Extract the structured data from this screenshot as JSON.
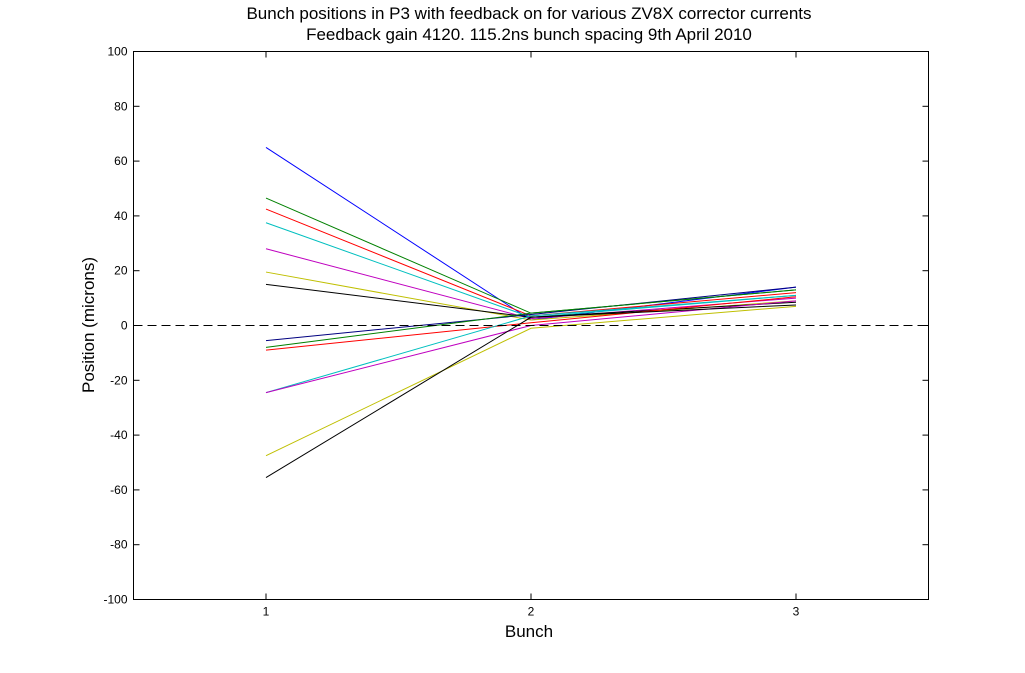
{
  "chart_data": {
    "type": "line",
    "title": "Bunch positions in P3 with feedback on for various ZV8X corrector currents",
    "subtitle": "Feedback gain 4120. 115.2ns bunch spacing 9th April 2010",
    "xlabel": "Bunch",
    "ylabel": "Position (microns)",
    "xlim": [
      0.5,
      3.5
    ],
    "ylim": [
      -100,
      100
    ],
    "xticks": [
      1,
      2,
      3
    ],
    "yticks": [
      -100,
      -80,
      -60,
      -40,
      -20,
      0,
      20,
      40,
      60,
      80,
      100
    ],
    "x": [
      1,
      2,
      3
    ],
    "grid": false,
    "legend": "none",
    "reference_line": {
      "y": 0,
      "style": "dashed",
      "color": "#000000"
    },
    "series": [
      {
        "color": "#0000ff",
        "values": [
          65,
          2,
          14
        ]
      },
      {
        "color": "#008000",
        "values": [
          46.5,
          4.5,
          13
        ]
      },
      {
        "color": "#ff0000",
        "values": [
          42.5,
          3.5,
          12
        ]
      },
      {
        "color": "#00bfbf",
        "values": [
          37.5,
          3,
          11
        ]
      },
      {
        "color": "#bf00bf",
        "values": [
          28,
          2.5,
          10
        ]
      },
      {
        "color": "#bfbf00",
        "values": [
          19.5,
          2,
          9
        ]
      },
      {
        "color": "#000000",
        "values": [
          15,
          3,
          8.5
        ]
      },
      {
        "color": "#000080",
        "values": [
          -5.5,
          4,
          14
        ]
      },
      {
        "color": "#008000",
        "values": [
          -8,
          4.5,
          13
        ]
      },
      {
        "color": "#ff0000",
        "values": [
          -9,
          1,
          10.5
        ]
      },
      {
        "color": "#00bfbf",
        "values": [
          -24.5,
          3.5,
          11
        ]
      },
      {
        "color": "#bf00bf",
        "values": [
          -24.5,
          0,
          9
        ]
      },
      {
        "color": "#bfbf00",
        "values": [
          -47.5,
          -1,
          7
        ]
      },
      {
        "color": "#000000",
        "values": [
          -55.5,
          3,
          7.5
        ]
      }
    ]
  }
}
